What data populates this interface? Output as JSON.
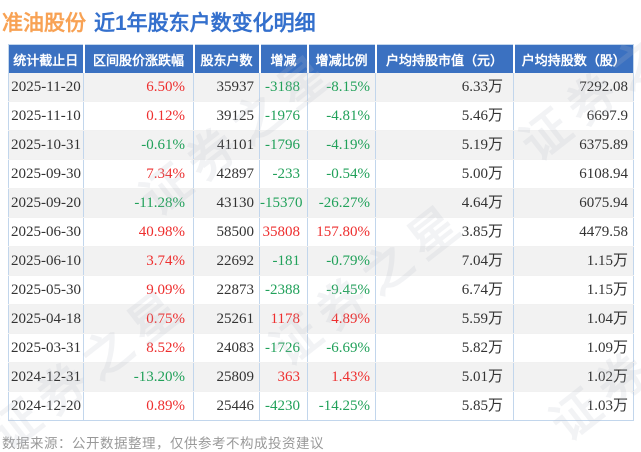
{
  "title": {
    "stock_name": "准油股份",
    "report_title": "近1年股东户数变化明细"
  },
  "colors": {
    "accent_orange": "#f8a254",
    "accent_blue": "#3470cd",
    "header_bg": "#3b71c1",
    "up_red": "#ee2f2f",
    "down_green": "#21a15a",
    "row_alt_bg": "#f2f2f2",
    "border_blue": "#c2d6ec",
    "footer_gray": "#999999"
  },
  "chart_data": {
    "type": "table",
    "title": "准油股份 近1年股东户数变化明细",
    "columns": [
      "统计截止日",
      "区间股价涨跌幅",
      "股东户数",
      "增减",
      "增减比例",
      "户均持股市值（元）",
      "户均持股数（股）"
    ],
    "signed_columns": [
      1,
      3,
      4
    ],
    "rows": [
      [
        "2025-11-20",
        "6.50%",
        "35937",
        "-3188",
        "-8.15%",
        "6.33万",
        "7292.08"
      ],
      [
        "2025-11-10",
        "0.12%",
        "39125",
        "-1976",
        "-4.81%",
        "5.46万",
        "6697.9"
      ],
      [
        "2025-10-31",
        "-0.61%",
        "41101",
        "-1796",
        "-4.19%",
        "5.19万",
        "6375.89"
      ],
      [
        "2025-09-30",
        "7.34%",
        "42897",
        "-233",
        "-0.54%",
        "5.00万",
        "6108.94"
      ],
      [
        "2025-09-20",
        "-11.28%",
        "43130",
        "-15370",
        "-26.27%",
        "4.64万",
        "6075.94"
      ],
      [
        "2025-06-30",
        "40.98%",
        "58500",
        "35808",
        "157.80%",
        "3.85万",
        "4479.58"
      ],
      [
        "2025-06-10",
        "3.74%",
        "22692",
        "-181",
        "-0.79%",
        "7.04万",
        "1.15万"
      ],
      [
        "2025-05-30",
        "9.09%",
        "22873",
        "-2388",
        "-9.45%",
        "6.74万",
        "1.15万"
      ],
      [
        "2025-04-18",
        "0.75%",
        "25261",
        "1178",
        "4.89%",
        "5.59万",
        "1.04万"
      ],
      [
        "2025-03-31",
        "8.52%",
        "24083",
        "-1726",
        "-6.69%",
        "5.82万",
        "1.09万"
      ],
      [
        "2024-12-31",
        "-13.20%",
        "25809",
        "363",
        "1.43%",
        "5.01万",
        "1.02万"
      ],
      [
        "2024-12-20",
        "0.89%",
        "25446",
        "-4230",
        "-14.25%",
        "5.85万",
        "1.03万"
      ]
    ]
  },
  "footer": {
    "source_note": "数据来源：公开数据整理，仅供参考不构成投资建议"
  },
  "watermark": {
    "text": "证券之星"
  }
}
